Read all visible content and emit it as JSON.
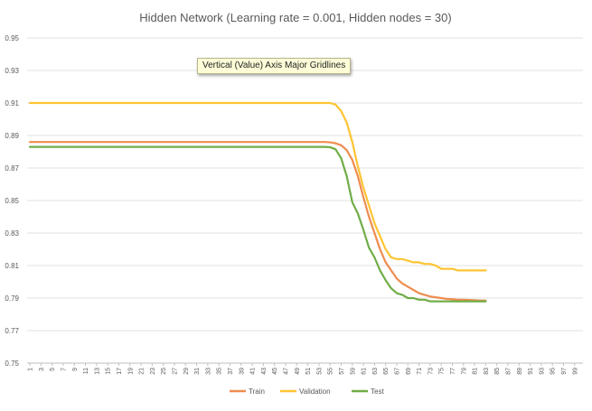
{
  "chart_data": {
    "type": "line",
    "title": "Hidden Network (Learning rate = 0.001, Hidden nodes = 30)",
    "xlabel": "",
    "ylabel": "",
    "ylim": [
      0.75,
      0.95
    ],
    "yticks": [
      "0.95",
      "0.93",
      "0.91",
      "0.89",
      "0.87",
      "0.85",
      "0.83",
      "0.81",
      "0.79",
      "0.77",
      "0.75"
    ],
    "xlim": [
      1,
      100
    ],
    "xticks": [
      "1",
      "3",
      "5",
      "7",
      "9",
      "11",
      "13",
      "15",
      "17",
      "19",
      "21",
      "23",
      "25",
      "27",
      "29",
      "31",
      "33",
      "35",
      "37",
      "39",
      "41",
      "43",
      "45",
      "47",
      "49",
      "51",
      "53",
      "55",
      "57",
      "59",
      "61",
      "63",
      "65",
      "67",
      "69",
      "71",
      "73",
      "75",
      "77",
      "79",
      "81",
      "83",
      "85",
      "87",
      "89",
      "91",
      "93",
      "95",
      "97",
      "99"
    ],
    "grid": true,
    "legend_position": "bottom",
    "series": [
      {
        "name": "Train",
        "color": "#ef8c4f",
        "points": [
          [
            1,
            0.886
          ],
          [
            54,
            0.886
          ],
          [
            55,
            0.8858
          ],
          [
            56,
            0.8852
          ],
          [
            57,
            0.884
          ],
          [
            58,
            0.881
          ],
          [
            59,
            0.875
          ],
          [
            60,
            0.865
          ],
          [
            61,
            0.852
          ],
          [
            62,
            0.84
          ],
          [
            63,
            0.83
          ],
          [
            64,
            0.82
          ],
          [
            65,
            0.812
          ],
          [
            66,
            0.807
          ],
          [
            67,
            0.802
          ],
          [
            68,
            0.799
          ],
          [
            69,
            0.797
          ],
          [
            70,
            0.795
          ],
          [
            71,
            0.793
          ],
          [
            72,
            0.792
          ],
          [
            73,
            0.791
          ],
          [
            74,
            0.7905
          ],
          [
            75,
            0.79
          ],
          [
            76,
            0.7895
          ],
          [
            77,
            0.7893
          ],
          [
            78,
            0.789
          ],
          [
            79,
            0.789
          ],
          [
            80,
            0.7888
          ],
          [
            81,
            0.7887
          ],
          [
            82,
            0.7885
          ],
          [
            83,
            0.7885
          ]
        ]
      },
      {
        "name": "Validation",
        "color": "#fec433",
        "points": [
          [
            1,
            0.91
          ],
          [
            55,
            0.91
          ],
          [
            56,
            0.909
          ],
          [
            57,
            0.905
          ],
          [
            58,
            0.898
          ],
          [
            59,
            0.886
          ],
          [
            60,
            0.871
          ],
          [
            61,
            0.858
          ],
          [
            62,
            0.847
          ],
          [
            63,
            0.836
          ],
          [
            64,
            0.828
          ],
          [
            65,
            0.82
          ],
          [
            66,
            0.815
          ],
          [
            67,
            0.814
          ],
          [
            68,
            0.814
          ],
          [
            69,
            0.813
          ],
          [
            70,
            0.812
          ],
          [
            71,
            0.812
          ],
          [
            72,
            0.811
          ],
          [
            73,
            0.811
          ],
          [
            74,
            0.81
          ],
          [
            75,
            0.808
          ],
          [
            76,
            0.808
          ],
          [
            77,
            0.808
          ],
          [
            78,
            0.807
          ],
          [
            79,
            0.807
          ],
          [
            80,
            0.807
          ],
          [
            81,
            0.807
          ],
          [
            82,
            0.807
          ],
          [
            83,
            0.807
          ]
        ]
      },
      {
        "name": "Test",
        "color": "#70ad47",
        "points": [
          [
            1,
            0.883
          ],
          [
            54,
            0.883
          ],
          [
            55,
            0.8828
          ],
          [
            56,
            0.8815
          ],
          [
            57,
            0.876
          ],
          [
            58,
            0.865
          ],
          [
            59,
            0.849
          ],
          [
            60,
            0.842
          ],
          [
            61,
            0.832
          ],
          [
            62,
            0.821
          ],
          [
            63,
            0.815
          ],
          [
            64,
            0.807
          ],
          [
            65,
            0.801
          ],
          [
            66,
            0.796
          ],
          [
            67,
            0.793
          ],
          [
            68,
            0.792
          ],
          [
            69,
            0.79
          ],
          [
            70,
            0.79
          ],
          [
            71,
            0.789
          ],
          [
            72,
            0.789
          ],
          [
            73,
            0.788
          ],
          [
            74,
            0.788
          ],
          [
            75,
            0.788
          ],
          [
            76,
            0.788
          ],
          [
            77,
            0.788
          ],
          [
            78,
            0.788
          ],
          [
            79,
            0.788
          ],
          [
            80,
            0.788
          ],
          [
            81,
            0.788
          ],
          [
            82,
            0.788
          ],
          [
            83,
            0.788
          ]
        ]
      }
    ],
    "tooltip": "Vertical (Value) Axis Major Gridlines"
  }
}
